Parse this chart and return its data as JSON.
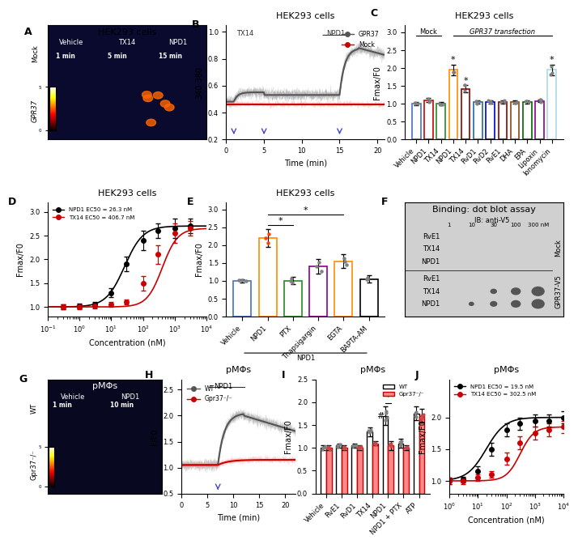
{
  "panel_layout": "3x4_complex",
  "title_fontsize": 8,
  "label_fontsize": 7,
  "tick_fontsize": 6,
  "B": {
    "title": "HEK293 cells",
    "xlabel": "Time (min)",
    "ylabel": "340:380",
    "xlim": [
      0,
      21
    ],
    "ylim": [
      0.2,
      1.05
    ],
    "yticks": [
      0.2,
      0.4,
      0.6,
      0.8,
      1.0
    ],
    "xticks": [
      0,
      5,
      10,
      15,
      20
    ],
    "gpr37_color": "#555555",
    "mock_color": "#cc0000",
    "legend": [
      "GPR37",
      "Mock"
    ],
    "tx14_label": "TX14",
    "npd1_label": "NPD1",
    "gpr37_base": 0.5,
    "gpr37_peak": 0.85,
    "mock_base": 0.45
  },
  "C": {
    "title": "HEK293 cells",
    "ylabel": "Fmax/F0",
    "ylim": [
      0,
      3.2
    ],
    "yticks": [
      0,
      0.5,
      1.0,
      1.5,
      2.0,
      2.5,
      3.0
    ],
    "mock_cats": [
      "Vehicle",
      "NPD1",
      "TX14"
    ],
    "mock_vals": [
      1.0,
      1.1,
      1.0
    ],
    "mock_errs": [
      0.04,
      0.06,
      0.04
    ],
    "mock_colors": [
      "#4472c4",
      "#cc0000",
      "#228b22"
    ],
    "gpr37_cats": [
      "NPD1",
      "TX14",
      "RvD1",
      "RvD2",
      "RvE1",
      "DHA",
      "EPA",
      "Lipoxin",
      "Ionomycin"
    ],
    "gpr37_vals": [
      1.95,
      1.42,
      1.05,
      1.05,
      1.05,
      1.05,
      1.05,
      1.08,
      1.95
    ],
    "gpr37_errs": [
      0.15,
      0.1,
      0.04,
      0.04,
      0.04,
      0.04,
      0.04,
      0.04,
      0.15
    ],
    "gpr37_colors": [
      "#ff8c00",
      "#8b0000",
      "#1f6b9a",
      "#0000cd",
      "#8b0000",
      "#8b4513",
      "#006400",
      "#8b008b",
      "#add8e6"
    ]
  },
  "D": {
    "title": "HEK293 cells",
    "xlabel": "Concentration (nM)",
    "ylabel": "Fmax/F0",
    "xlim": [
      0.1,
      10000
    ],
    "ylim": [
      0.8,
      3.2
    ],
    "yticks": [
      1.0,
      1.5,
      2.0,
      2.5,
      3.0
    ],
    "npd1_label": "NPD1 EC50 = 26.3 nM",
    "tx14_label": "TX14 EC50 = 406.7 nM",
    "npd1_color": "#000000",
    "tx14_color": "#cc0000",
    "npd1_x": [
      0.3,
      1,
      3,
      10,
      30,
      100,
      300,
      1000,
      3000
    ],
    "npd1_y": [
      1.0,
      1.02,
      1.05,
      1.3,
      1.9,
      2.4,
      2.6,
      2.65,
      2.7
    ],
    "tx14_x": [
      0.3,
      1,
      3,
      10,
      30,
      100,
      300,
      1000,
      3000
    ],
    "tx14_y": [
      1.0,
      1.0,
      1.02,
      1.05,
      1.1,
      1.5,
      2.1,
      2.55,
      2.65
    ],
    "npd1_err": [
      0.05,
      0.05,
      0.05,
      0.1,
      0.15,
      0.2,
      0.15,
      0.2,
      0.15
    ],
    "tx14_err": [
      0.05,
      0.05,
      0.05,
      0.05,
      0.05,
      0.15,
      0.2,
      0.2,
      0.15
    ]
  },
  "E": {
    "title": "HEK293 cells",
    "ylabel": "Fmax/F0",
    "ylim": [
      0,
      3.2
    ],
    "yticks": [
      0,
      0.5,
      1.0,
      1.5,
      2.0,
      2.5,
      3.0
    ],
    "categories": [
      "Vehicle",
      "NPD1",
      "PTX",
      "Thapsigargin",
      "EGTA",
      "BAPTA-AM"
    ],
    "values": [
      1.0,
      2.2,
      1.0,
      1.4,
      1.55,
      1.05
    ],
    "errors": [
      0.05,
      0.25,
      0.1,
      0.2,
      0.2,
      0.1
    ],
    "bar_edge_colors": [
      "#4472c4",
      "#ff8c00",
      "#228b22",
      "#8b008b",
      "#ff8c00",
      "#000000"
    ]
  },
  "H": {
    "title": "pMΦs",
    "xlabel": "Time (min)",
    "ylabel": "F/F0",
    "xlim": [
      0,
      22
    ],
    "ylim": [
      0.5,
      2.7
    ],
    "yticks": [
      0.5,
      1.0,
      1.5,
      2.0,
      2.5
    ],
    "wt_color": "#555555",
    "gpr37_color": "#cc0000"
  },
  "I": {
    "title": "pMΦs",
    "ylabel": "Fmax/F0",
    "ylim": [
      0,
      2.5
    ],
    "yticks": [
      0,
      0.5,
      1.0,
      1.5,
      2.0,
      2.5
    ],
    "categories": [
      "Vehicle",
      "RvE1",
      "RvD1",
      "TX14",
      "NPD1",
      "NPD1 + PTX",
      "ATP"
    ],
    "wt_values": [
      1.0,
      1.05,
      1.05,
      1.35,
      1.7,
      1.1,
      1.75
    ],
    "gpr37_values": [
      1.0,
      1.0,
      1.0,
      1.1,
      1.05,
      1.0,
      1.7
    ],
    "wt_errors": [
      0.05,
      0.05,
      0.05,
      0.1,
      0.2,
      0.1,
      0.15
    ],
    "gpr37_errors": [
      0.05,
      0.05,
      0.05,
      0.05,
      0.1,
      0.05,
      0.15
    ]
  },
  "J": {
    "title": "pMΦs",
    "xlabel": "Concentration (nM)",
    "ylabel": "Fmax/F0",
    "xlim": [
      1,
      10000
    ],
    "ylim": [
      0.8,
      2.6
    ],
    "yticks": [
      1.0,
      1.5,
      2.0
    ],
    "npd1_label": "NPD1 EC50 = 19.5 nM",
    "tx14_label": "TX14 EC50 = 302.5 nM",
    "npd1_color": "#000000",
    "tx14_color": "#cc0000",
    "npd1_x": [
      1,
      3,
      10,
      30,
      100,
      300,
      1000,
      3000,
      10000
    ],
    "npd1_y": [
      1.0,
      1.02,
      1.15,
      1.5,
      1.8,
      1.9,
      1.95,
      1.95,
      2.0
    ],
    "tx14_x": [
      1,
      3,
      10,
      30,
      100,
      300,
      1000,
      3000,
      10000
    ],
    "tx14_y": [
      1.0,
      1.0,
      1.05,
      1.1,
      1.35,
      1.6,
      1.75,
      1.8,
      1.85
    ],
    "npd1_err": [
      0.05,
      0.05,
      0.08,
      0.1,
      0.1,
      0.1,
      0.1,
      0.1,
      0.1
    ],
    "tx14_err": [
      0.05,
      0.05,
      0.05,
      0.05,
      0.1,
      0.1,
      0.1,
      0.1,
      0.1
    ]
  },
  "bg_color": "#ffffff"
}
